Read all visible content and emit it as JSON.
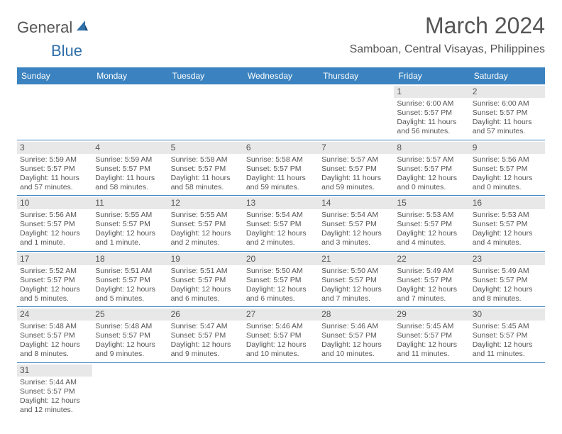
{
  "brand": {
    "text1": "General",
    "text2": "Blue"
  },
  "title": "March 2024",
  "location": "Samboan, Central Visayas, Philippines",
  "colors": {
    "header_bg": "#3b83c0",
    "header_text": "#ffffff",
    "daynum_bg": "#e8e8e8",
    "text": "#555555",
    "divider": "#3b83c0",
    "logo_blue": "#2f6fa8"
  },
  "day_names": [
    "Sunday",
    "Monday",
    "Tuesday",
    "Wednesday",
    "Thursday",
    "Friday",
    "Saturday"
  ],
  "weeks": [
    [
      {
        "empty": true
      },
      {
        "empty": true
      },
      {
        "empty": true
      },
      {
        "empty": true
      },
      {
        "empty": true
      },
      {
        "day": "1",
        "sunrise": "Sunrise: 6:00 AM",
        "sunset": "Sunset: 5:57 PM",
        "daylight1": "Daylight: 11 hours",
        "daylight2": "and 56 minutes."
      },
      {
        "day": "2",
        "sunrise": "Sunrise: 6:00 AM",
        "sunset": "Sunset: 5:57 PM",
        "daylight1": "Daylight: 11 hours",
        "daylight2": "and 57 minutes."
      }
    ],
    [
      {
        "day": "3",
        "sunrise": "Sunrise: 5:59 AM",
        "sunset": "Sunset: 5:57 PM",
        "daylight1": "Daylight: 11 hours",
        "daylight2": "and 57 minutes."
      },
      {
        "day": "4",
        "sunrise": "Sunrise: 5:59 AM",
        "sunset": "Sunset: 5:57 PM",
        "daylight1": "Daylight: 11 hours",
        "daylight2": "and 58 minutes."
      },
      {
        "day": "5",
        "sunrise": "Sunrise: 5:58 AM",
        "sunset": "Sunset: 5:57 PM",
        "daylight1": "Daylight: 11 hours",
        "daylight2": "and 58 minutes."
      },
      {
        "day": "6",
        "sunrise": "Sunrise: 5:58 AM",
        "sunset": "Sunset: 5:57 PM",
        "daylight1": "Daylight: 11 hours",
        "daylight2": "and 59 minutes."
      },
      {
        "day": "7",
        "sunrise": "Sunrise: 5:57 AM",
        "sunset": "Sunset: 5:57 PM",
        "daylight1": "Daylight: 11 hours",
        "daylight2": "and 59 minutes."
      },
      {
        "day": "8",
        "sunrise": "Sunrise: 5:57 AM",
        "sunset": "Sunset: 5:57 PM",
        "daylight1": "Daylight: 12 hours",
        "daylight2": "and 0 minutes."
      },
      {
        "day": "9",
        "sunrise": "Sunrise: 5:56 AM",
        "sunset": "Sunset: 5:57 PM",
        "daylight1": "Daylight: 12 hours",
        "daylight2": "and 0 minutes."
      }
    ],
    [
      {
        "day": "10",
        "sunrise": "Sunrise: 5:56 AM",
        "sunset": "Sunset: 5:57 PM",
        "daylight1": "Daylight: 12 hours",
        "daylight2": "and 1 minute."
      },
      {
        "day": "11",
        "sunrise": "Sunrise: 5:55 AM",
        "sunset": "Sunset: 5:57 PM",
        "daylight1": "Daylight: 12 hours",
        "daylight2": "and 1 minute."
      },
      {
        "day": "12",
        "sunrise": "Sunrise: 5:55 AM",
        "sunset": "Sunset: 5:57 PM",
        "daylight1": "Daylight: 12 hours",
        "daylight2": "and 2 minutes."
      },
      {
        "day": "13",
        "sunrise": "Sunrise: 5:54 AM",
        "sunset": "Sunset: 5:57 PM",
        "daylight1": "Daylight: 12 hours",
        "daylight2": "and 2 minutes."
      },
      {
        "day": "14",
        "sunrise": "Sunrise: 5:54 AM",
        "sunset": "Sunset: 5:57 PM",
        "daylight1": "Daylight: 12 hours",
        "daylight2": "and 3 minutes."
      },
      {
        "day": "15",
        "sunrise": "Sunrise: 5:53 AM",
        "sunset": "Sunset: 5:57 PM",
        "daylight1": "Daylight: 12 hours",
        "daylight2": "and 4 minutes."
      },
      {
        "day": "16",
        "sunrise": "Sunrise: 5:53 AM",
        "sunset": "Sunset: 5:57 PM",
        "daylight1": "Daylight: 12 hours",
        "daylight2": "and 4 minutes."
      }
    ],
    [
      {
        "day": "17",
        "sunrise": "Sunrise: 5:52 AM",
        "sunset": "Sunset: 5:57 PM",
        "daylight1": "Daylight: 12 hours",
        "daylight2": "and 5 minutes."
      },
      {
        "day": "18",
        "sunrise": "Sunrise: 5:51 AM",
        "sunset": "Sunset: 5:57 PM",
        "daylight1": "Daylight: 12 hours",
        "daylight2": "and 5 minutes."
      },
      {
        "day": "19",
        "sunrise": "Sunrise: 5:51 AM",
        "sunset": "Sunset: 5:57 PM",
        "daylight1": "Daylight: 12 hours",
        "daylight2": "and 6 minutes."
      },
      {
        "day": "20",
        "sunrise": "Sunrise: 5:50 AM",
        "sunset": "Sunset: 5:57 PM",
        "daylight1": "Daylight: 12 hours",
        "daylight2": "and 6 minutes."
      },
      {
        "day": "21",
        "sunrise": "Sunrise: 5:50 AM",
        "sunset": "Sunset: 5:57 PM",
        "daylight1": "Daylight: 12 hours",
        "daylight2": "and 7 minutes."
      },
      {
        "day": "22",
        "sunrise": "Sunrise: 5:49 AM",
        "sunset": "Sunset: 5:57 PM",
        "daylight1": "Daylight: 12 hours",
        "daylight2": "and 7 minutes."
      },
      {
        "day": "23",
        "sunrise": "Sunrise: 5:49 AM",
        "sunset": "Sunset: 5:57 PM",
        "daylight1": "Daylight: 12 hours",
        "daylight2": "and 8 minutes."
      }
    ],
    [
      {
        "day": "24",
        "sunrise": "Sunrise: 5:48 AM",
        "sunset": "Sunset: 5:57 PM",
        "daylight1": "Daylight: 12 hours",
        "daylight2": "and 8 minutes."
      },
      {
        "day": "25",
        "sunrise": "Sunrise: 5:48 AM",
        "sunset": "Sunset: 5:57 PM",
        "daylight1": "Daylight: 12 hours",
        "daylight2": "and 9 minutes."
      },
      {
        "day": "26",
        "sunrise": "Sunrise: 5:47 AM",
        "sunset": "Sunset: 5:57 PM",
        "daylight1": "Daylight: 12 hours",
        "daylight2": "and 9 minutes."
      },
      {
        "day": "27",
        "sunrise": "Sunrise: 5:46 AM",
        "sunset": "Sunset: 5:57 PM",
        "daylight1": "Daylight: 12 hours",
        "daylight2": "and 10 minutes."
      },
      {
        "day": "28",
        "sunrise": "Sunrise: 5:46 AM",
        "sunset": "Sunset: 5:57 PM",
        "daylight1": "Daylight: 12 hours",
        "daylight2": "and 10 minutes."
      },
      {
        "day": "29",
        "sunrise": "Sunrise: 5:45 AM",
        "sunset": "Sunset: 5:57 PM",
        "daylight1": "Daylight: 12 hours",
        "daylight2": "and 11 minutes."
      },
      {
        "day": "30",
        "sunrise": "Sunrise: 5:45 AM",
        "sunset": "Sunset: 5:57 PM",
        "daylight1": "Daylight: 12 hours",
        "daylight2": "and 11 minutes."
      }
    ],
    [
      {
        "day": "31",
        "sunrise": "Sunrise: 5:44 AM",
        "sunset": "Sunset: 5:57 PM",
        "daylight1": "Daylight: 12 hours",
        "daylight2": "and 12 minutes."
      },
      {
        "empty": true
      },
      {
        "empty": true
      },
      {
        "empty": true
      },
      {
        "empty": true
      },
      {
        "empty": true
      },
      {
        "empty": true
      }
    ]
  ]
}
